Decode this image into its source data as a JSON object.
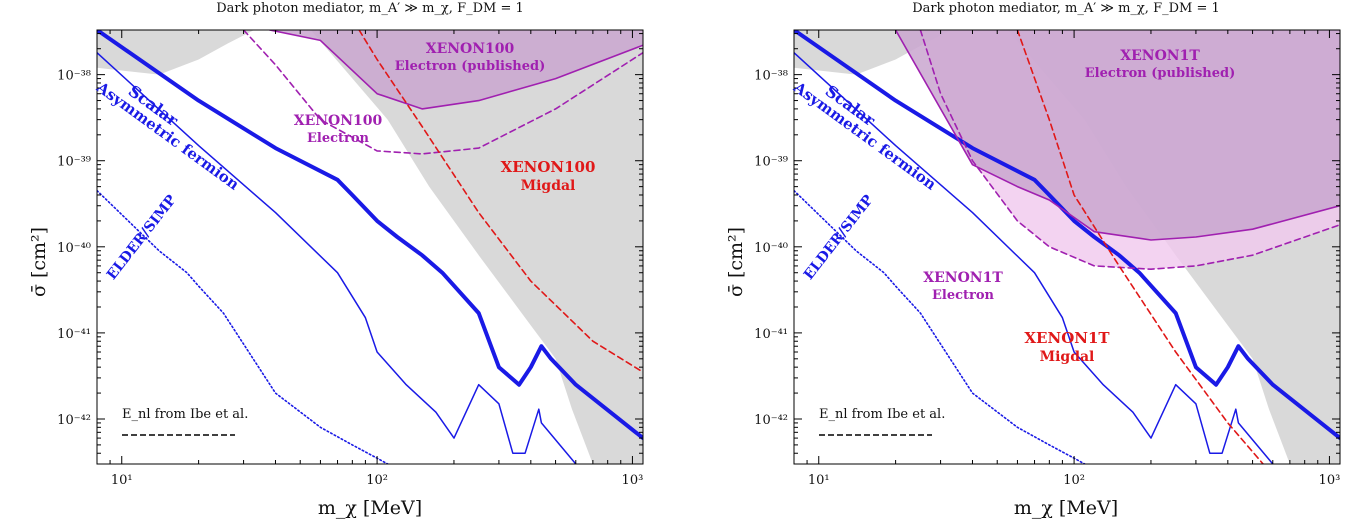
{
  "chart_data": [
    {
      "type": "line",
      "title": "Dark photon mediator, m_A′ ≫ m_χ, F_DM = 1",
      "xlabel": "m_χ [MeV]",
      "ylabel": "σ̄ [cm²]",
      "xscale": "log",
      "yscale": "log",
      "xlim": [
        8,
        1100
      ],
      "ylim": [
        3e-43,
        3.3e-38
      ],
      "xticks": [
        "10¹",
        "10²",
        "10³"
      ],
      "yticks": [
        "10⁻³⁸",
        "10⁻³⁹",
        "10⁻⁴⁰",
        "10⁻⁴¹",
        "10⁻⁴²"
      ],
      "legend": {
        "text": "E_nl from Ibe et al.",
        "position": "bottom-left",
        "style": "dashed black"
      },
      "series": [
        {
          "name": "Scalar",
          "color": "#1a1ae6",
          "width": 4,
          "x": [
            8,
            20,
            40,
            70,
            80,
            100,
            120,
            150,
            180,
            250,
            300,
            360,
            400,
            440,
            480,
            600,
            1100
          ],
          "y": [
            3.3e-38,
            5e-39,
            1.4e-39,
            6e-40,
            4e-40,
            2e-40,
            1.3e-40,
            8e-41,
            5e-41,
            1.7e-41,
            4e-42,
            2.5e-42,
            4e-42,
            7e-42,
            5e-42,
            2.5e-42,
            6e-43
          ]
        },
        {
          "name": "Asymmetric fermion",
          "color": "#1a1ae6",
          "width": 1.5,
          "x": [
            8,
            20,
            40,
            70,
            90,
            100,
            130,
            170,
            200,
            250,
            300,
            340,
            380,
            430,
            440,
            600
          ],
          "y": [
            1.8e-38,
            1.5e-39,
            2.5e-40,
            5e-41,
            1.5e-41,
            6e-42,
            2.5e-42,
            1.2e-42,
            6e-43,
            2.5e-42,
            1.5e-42,
            4e-43,
            4e-43,
            1.3e-42,
            9e-43,
            3e-43
          ]
        },
        {
          "name": "ELDER/SIMP",
          "color": "#1a1ae6",
          "width": 1.6,
          "style": "dotted",
          "x": [
            8,
            14,
            18,
            20,
            25,
            40,
            60,
            80,
            100,
            110
          ],
          "y": [
            4.5e-40,
            9e-41,
            5e-41,
            3.5e-41,
            1.7e-41,
            2e-42,
            8e-43,
            5e-43,
            3.5e-43,
            3e-43
          ]
        },
        {
          "name": "XENON100 Electron (published)",
          "color": "#a020b0",
          "fill": "#c9a6cf",
          "x": [
            38,
            60,
            100,
            150,
            250,
            500,
            1100
          ],
          "y": [
            3.3e-38,
            2.5e-38,
            6e-39,
            4e-39,
            5e-39,
            9e-39,
            2.2e-38
          ]
        },
        {
          "name": "XENON100 Electron",
          "color": "#a020b0",
          "style": "dashed",
          "x": [
            30,
            40,
            60,
            100,
            150,
            250,
            500,
            1100
          ],
          "y": [
            3.3e-38,
            1.3e-38,
            3e-39,
            1.3e-39,
            1.2e-39,
            1.4e-39,
            4e-39,
            1.8e-38
          ]
        },
        {
          "name": "XENON100 Migdal",
          "color": "#e01818",
          "style": "dashed",
          "x": [
            85,
            100,
            150,
            250,
            400,
            700,
            1100
          ],
          "y": [
            3.3e-38,
            1.5e-38,
            2.5e-39,
            2.5e-40,
            4e-41,
            8e-42,
            3.5e-42
          ]
        }
      ],
      "annotations": [
        {
          "text": "Scalar",
          "color": "#1a1ae6"
        },
        {
          "text": "Asymmetric fermion",
          "color": "#1a1ae6"
        },
        {
          "text": "ELDER/SIMP",
          "color": "#1a1ae6"
        },
        {
          "text": "XENON100",
          "sub": "Electron (published)",
          "color": "#a020b0"
        },
        {
          "text": "XENON100",
          "sub": "Electron",
          "color": "#a020b0"
        },
        {
          "text": "XENON100",
          "sub": "Migdal",
          "color": "#e01818"
        }
      ]
    },
    {
      "type": "line",
      "title": "Dark photon mediator, m_A′ ≫ m_χ, F_DM = 1",
      "xlabel": "m_χ [MeV]",
      "ylabel": "σ̄ [cm²]",
      "xscale": "log",
      "yscale": "log",
      "xlim": [
        8,
        1100
      ],
      "ylim": [
        3e-43,
        3.3e-38
      ],
      "xticks": [
        "10¹",
        "10²",
        "10³"
      ],
      "yticks": [
        "10⁻³⁸",
        "10⁻³⁹",
        "10⁻⁴⁰",
        "10⁻⁴¹",
        "10⁻⁴²"
      ],
      "legend": {
        "text": "E_nl from Ibe et al.",
        "position": "bottom-left",
        "style": "dashed black"
      },
      "series": [
        {
          "name": "Scalar",
          "color": "#1a1ae6",
          "width": 4,
          "x": [
            8,
            20,
            40,
            70,
            80,
            100,
            120,
            150,
            180,
            250,
            300,
            360,
            400,
            440,
            480,
            600,
            1100
          ],
          "y": [
            3.3e-38,
            5e-39,
            1.4e-39,
            6e-40,
            4e-40,
            2e-40,
            1.3e-40,
            8e-41,
            5e-41,
            1.7e-41,
            4e-42,
            2.5e-42,
            4e-42,
            7e-42,
            5e-42,
            2.5e-42,
            6e-43
          ]
        },
        {
          "name": "Asymmetric fermion",
          "color": "#1a1ae6",
          "width": 1.5,
          "x": [
            8,
            20,
            40,
            70,
            90,
            100,
            130,
            170,
            200,
            250,
            300,
            340,
            380,
            430,
            440,
            600
          ],
          "y": [
            1.8e-38,
            1.5e-39,
            2.5e-40,
            5e-41,
            1.5e-41,
            6e-42,
            2.5e-42,
            1.2e-42,
            6e-43,
            2.5e-42,
            1.5e-42,
            4e-43,
            4e-43,
            1.3e-42,
            9e-43,
            3e-43
          ]
        },
        {
          "name": "ELDER/SIMP",
          "color": "#1a1ae6",
          "width": 1.6,
          "style": "dotted",
          "x": [
            8,
            14,
            18,
            20,
            25,
            40,
            60,
            80,
            100,
            110
          ],
          "y": [
            4.5e-40,
            9e-41,
            5e-41,
            3.5e-41,
            1.7e-41,
            2e-42,
            8e-43,
            5e-43,
            3.5e-43,
            3e-43
          ]
        },
        {
          "name": "XENON1T Electron (published)",
          "color": "#a020b0",
          "fill": "#c9a6cf",
          "x": [
            20,
            40,
            60,
            80,
            120,
            200,
            300,
            500,
            1100
          ],
          "y": [
            3.3e-38,
            9e-40,
            5e-40,
            3.5e-40,
            1.5e-40,
            1.2e-40,
            1.3e-40,
            1.6e-40,
            3e-40
          ]
        },
        {
          "name": "XENON1T Electron",
          "color": "#a020b0",
          "style": "dashed",
          "x": [
            25,
            30,
            40,
            60,
            80,
            120,
            200,
            300,
            500,
            1100
          ],
          "y": [
            3.3e-38,
            6e-39,
            1e-39,
            2e-40,
            1e-40,
            6e-41,
            5.5e-41,
            6e-41,
            8e-41,
            1.8e-40
          ]
        },
        {
          "name": "XENON1T Migdal",
          "color": "#e01818",
          "style": "dashed",
          "x": [
            60,
            80,
            100,
            150,
            250,
            400,
            550
          ],
          "y": [
            3.3e-38,
            3e-39,
            4e-40,
            6e-41,
            6e-42,
            9e-43,
            3e-43
          ]
        }
      ],
      "annotations": [
        {
          "text": "Scalar",
          "color": "#1a1ae6"
        },
        {
          "text": "Asymmetric fermion",
          "color": "#1a1ae6"
        },
        {
          "text": "ELDER/SIMP",
          "color": "#1a1ae6"
        },
        {
          "text": "XENON1T",
          "sub": "Electron (published)",
          "color": "#a020b0"
        },
        {
          "text": "XENON1T",
          "sub": "Electron",
          "color": "#a020b0"
        },
        {
          "text": "XENON1T",
          "sub": "Migdal",
          "color": "#e01818"
        }
      ]
    }
  ]
}
